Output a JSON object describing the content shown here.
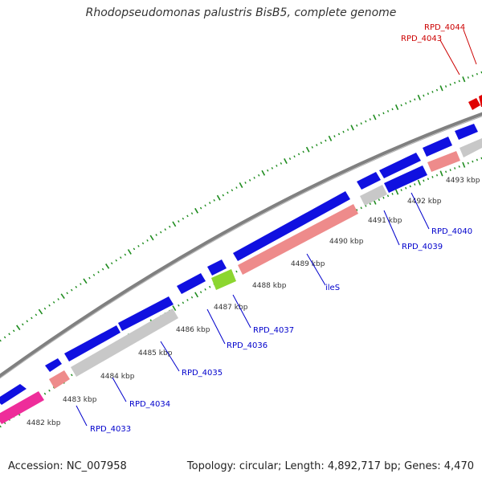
{
  "title": "Rhodopseudomonas palustris BisB5, complete genome",
  "footer": {
    "accession": "Accession: NC_007958",
    "summary": "Topology: circular; Length: 4,892,717 bp; Genes: 4,470"
  },
  "colors": {
    "forward_cds": "#1010e0",
    "reverse_cds": "#ee8b8b",
    "gray_feature": "#c8c8c8",
    "magenta_feature": "#ee2d9a",
    "rna_feature": "#8cd630",
    "highlight_feature": "#e00000",
    "backbone": "#808080",
    "ticks": "#1e8c1e",
    "label_blue": "#0000cc",
    "label_red": "#cc0000"
  },
  "kbp_labels": [
    "4482 kbp",
    "4483 kbp",
    "4484 kbp",
    "4485 kbp",
    "4486 kbp",
    "4487 kbp",
    "4488 kbp",
    "4489 kbp",
    "4490 kbp",
    "4491 kbp",
    "4492 kbp",
    "4493 kbp"
  ],
  "gene_labels": [
    {
      "text": "RPD_4033",
      "color": "blue"
    },
    {
      "text": "RPD_4034",
      "color": "blue"
    },
    {
      "text": "RPD_4035",
      "color": "blue"
    },
    {
      "text": "RPD_4036",
      "color": "blue"
    },
    {
      "text": "RPD_4037",
      "color": "blue"
    },
    {
      "text": "ileS",
      "color": "blue"
    },
    {
      "text": "RPD_4039",
      "color": "blue"
    },
    {
      "text": "RPD_4040",
      "color": "blue"
    },
    {
      "text": "RPD_4043",
      "color": "red"
    },
    {
      "text": "RPD_4044",
      "color": "red"
    }
  ]
}
